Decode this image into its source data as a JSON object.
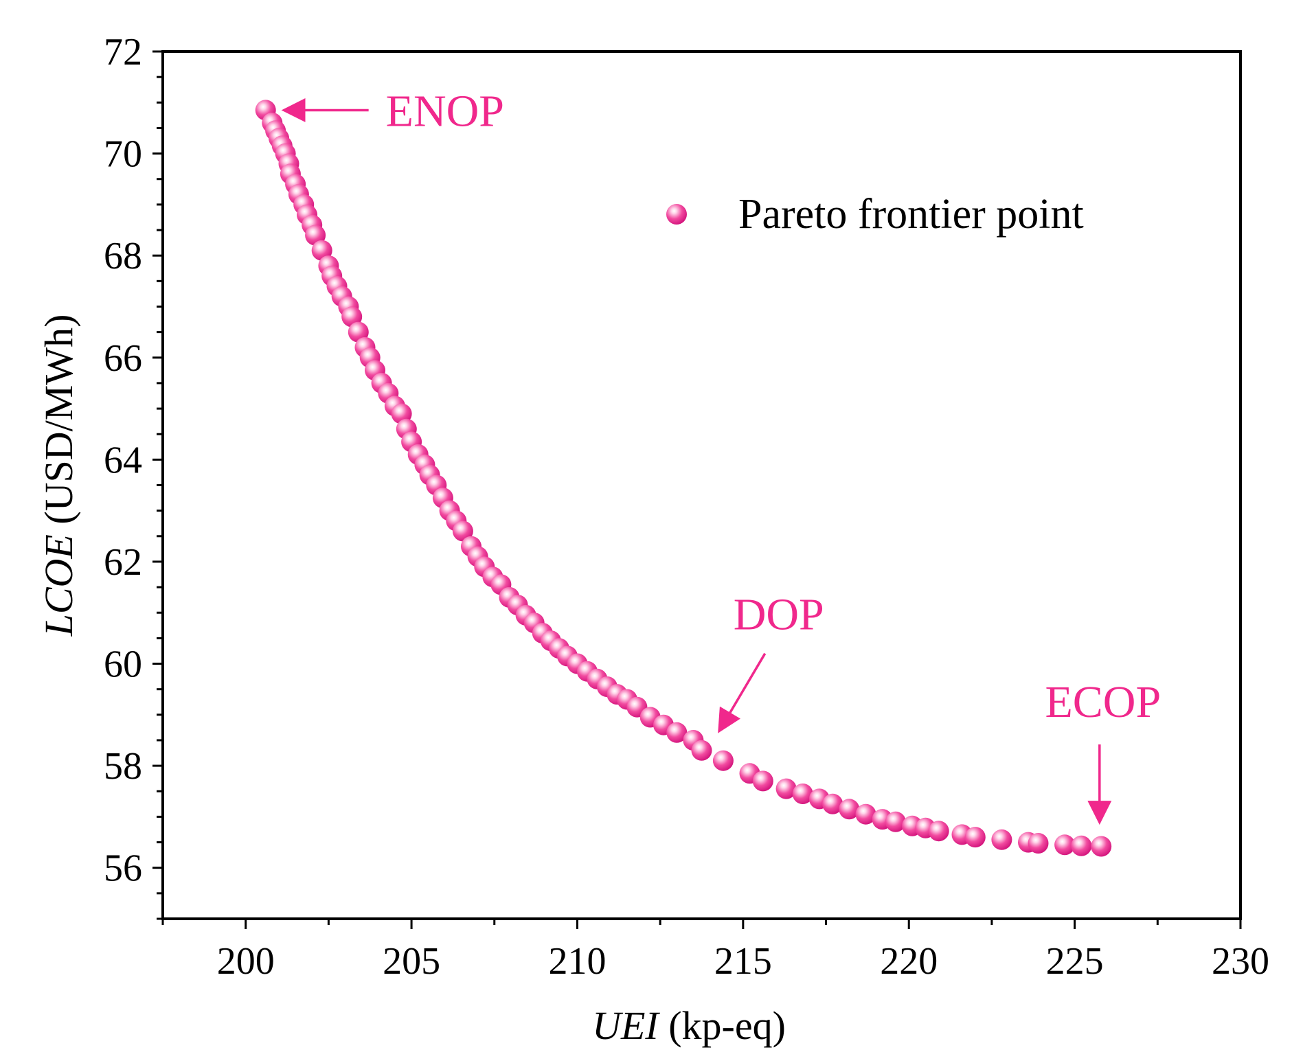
{
  "colors": {
    "accent": "#f0288c",
    "point_fill": "#f24ba0",
    "highlight": "#ffe0ef",
    "axis": "#000000"
  },
  "chart_data": {
    "type": "scatter",
    "title": "",
    "xlabel": {
      "italic": "UEI",
      "rest": " (kp-eq)"
    },
    "ylabel": {
      "italic": "LCOE",
      "rest": " (USD/MWh)"
    },
    "xlim": [
      197.5,
      230
    ],
    "ylim": [
      55,
      72
    ],
    "xticks": [
      200,
      205,
      210,
      215,
      220,
      225,
      230
    ],
    "yticks": [
      56,
      58,
      60,
      62,
      64,
      66,
      68,
      70,
      72
    ],
    "grid": false,
    "legend": {
      "position": "top-right",
      "entries": [
        "Pareto frontier point"
      ]
    },
    "series": [
      {
        "name": "Pareto frontier point",
        "points": [
          [
            200.6,
            70.85
          ],
          [
            200.8,
            70.6
          ],
          [
            200.9,
            70.45
          ],
          [
            201.0,
            70.3
          ],
          [
            201.1,
            70.15
          ],
          [
            201.2,
            70.0
          ],
          [
            201.3,
            69.8
          ],
          [
            201.35,
            69.6
          ],
          [
            201.5,
            69.4
          ],
          [
            201.6,
            69.2
          ],
          [
            201.75,
            69.0
          ],
          [
            201.85,
            68.8
          ],
          [
            202.0,
            68.6
          ],
          [
            202.1,
            68.4
          ],
          [
            202.3,
            68.1
          ],
          [
            202.5,
            67.8
          ],
          [
            202.6,
            67.6
          ],
          [
            202.75,
            67.4
          ],
          [
            202.9,
            67.2
          ],
          [
            203.1,
            67.0
          ],
          [
            203.2,
            66.8
          ],
          [
            203.4,
            66.5
          ],
          [
            203.6,
            66.2
          ],
          [
            203.75,
            66.0
          ],
          [
            203.9,
            65.75
          ],
          [
            204.1,
            65.5
          ],
          [
            204.3,
            65.3
          ],
          [
            204.5,
            65.05
          ],
          [
            204.7,
            64.9
          ],
          [
            204.85,
            64.6
          ],
          [
            205.0,
            64.35
          ],
          [
            205.2,
            64.1
          ],
          [
            205.4,
            63.9
          ],
          [
            205.55,
            63.7
          ],
          [
            205.75,
            63.5
          ],
          [
            205.95,
            63.25
          ],
          [
            206.15,
            63.0
          ],
          [
            206.35,
            62.8
          ],
          [
            206.55,
            62.6
          ],
          [
            206.8,
            62.3
          ],
          [
            207.0,
            62.1
          ],
          [
            207.2,
            61.9
          ],
          [
            207.45,
            61.7
          ],
          [
            207.7,
            61.55
          ],
          [
            207.95,
            61.3
          ],
          [
            208.2,
            61.15
          ],
          [
            208.45,
            60.95
          ],
          [
            208.7,
            60.8
          ],
          [
            208.95,
            60.6
          ],
          [
            209.2,
            60.45
          ],
          [
            209.45,
            60.3
          ],
          [
            209.7,
            60.15
          ],
          [
            210.0,
            60.0
          ],
          [
            210.3,
            59.85
          ],
          [
            210.6,
            59.7
          ],
          [
            210.9,
            59.55
          ],
          [
            211.2,
            59.4
          ],
          [
            211.5,
            59.3
          ],
          [
            211.8,
            59.15
          ],
          [
            212.2,
            58.95
          ],
          [
            212.6,
            58.8
          ],
          [
            213.0,
            58.65
          ],
          [
            213.5,
            58.5
          ],
          [
            213.75,
            58.3
          ],
          [
            214.4,
            58.1
          ],
          [
            215.2,
            57.85
          ],
          [
            215.6,
            57.7
          ],
          [
            216.3,
            57.55
          ],
          [
            216.8,
            57.45
          ],
          [
            217.3,
            57.35
          ],
          [
            217.7,
            57.25
          ],
          [
            218.2,
            57.15
          ],
          [
            218.7,
            57.05
          ],
          [
            219.2,
            56.95
          ],
          [
            219.6,
            56.9
          ],
          [
            220.1,
            56.82
          ],
          [
            220.5,
            56.78
          ],
          [
            220.9,
            56.72
          ],
          [
            221.6,
            56.65
          ],
          [
            222.0,
            56.6
          ],
          [
            222.8,
            56.55
          ],
          [
            223.6,
            56.5
          ],
          [
            223.9,
            56.48
          ],
          [
            224.7,
            56.45
          ],
          [
            225.2,
            56.43
          ],
          [
            225.8,
            56.42
          ]
        ]
      }
    ],
    "annotations": [
      {
        "label": "ENOP",
        "x": 200.6,
        "y": 70.85,
        "direction": "left"
      },
      {
        "label": "DOP",
        "x": 213.9,
        "y": 58.45,
        "direction": "down-left"
      },
      {
        "label": "ECOP",
        "x": 225.75,
        "y": 56.6,
        "direction": "down"
      }
    ]
  }
}
